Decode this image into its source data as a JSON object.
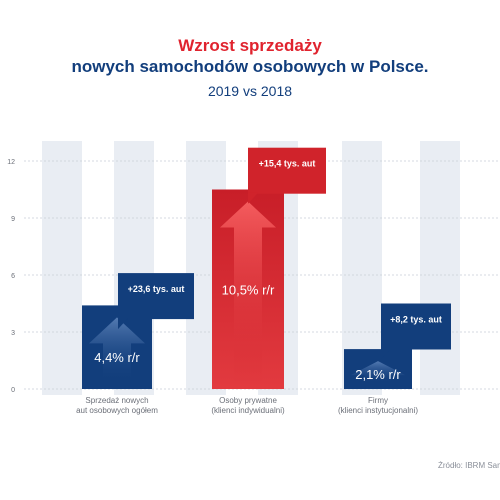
{
  "header": {
    "title_line1": "Wzrost sprzedaży",
    "title_line2": "nowych samochodów osobowych  w Polsce.",
    "subtitle": "2019 vs 2018"
  },
  "source": "Źródło: IBRM Samar",
  "colors": {
    "blue": "#123e7c",
    "red": "#d0232b",
    "stripe": "#e9edf3",
    "axis_text": "#6b6f78"
  },
  "chart_data": {
    "type": "bar",
    "title": "",
    "xlabel": "",
    "ylabel": "",
    "ylim": [
      0,
      12
    ],
    "yticks": [
      0,
      3,
      6,
      9,
      12
    ],
    "grid": true,
    "categories": [
      [
        "Sprzedaż nowych",
        "aut osobowych ogółem"
      ],
      [
        "Osoby prywatne",
        "(klienci indywidualni)"
      ],
      [
        "Firmy",
        "(klienci instytucjonalni)"
      ]
    ],
    "values": [
      4.4,
      10.5,
      2.1
    ],
    "value_labels": [
      "4,4% r/r",
      "10,5% r/r",
      "2,1% r/r"
    ],
    "bar_colors": [
      "#123e7c",
      "#d0232b",
      "#123e7c"
    ],
    "callouts": [
      "+23,6 tys. aut",
      "+15,4 tys. aut",
      "+8,2 tys. aut"
    ],
    "callout_colors": [
      "#123e7c",
      "#d0232b",
      "#123e7c"
    ],
    "callout_levels": [
      6.1,
      12.7,
      4.5
    ]
  }
}
